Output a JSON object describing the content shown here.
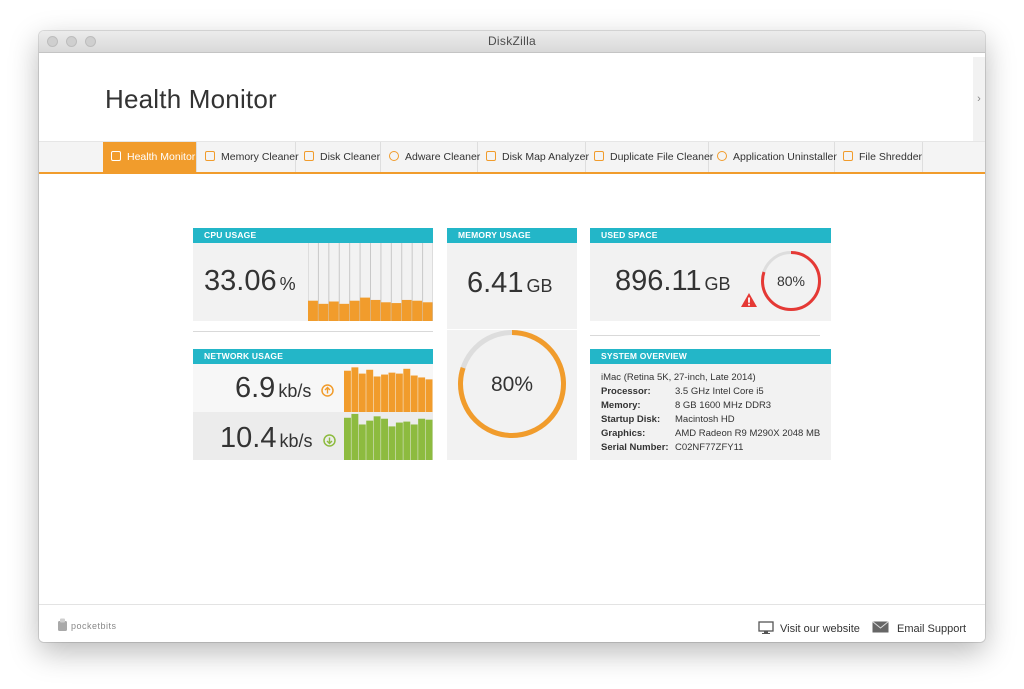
{
  "window": {
    "title": "DiskZilla"
  },
  "page": {
    "heading": "Health Monitor"
  },
  "tabs": [
    {
      "label": "Health Monitor",
      "icon": "health-monitor-icon",
      "active": true
    },
    {
      "label": "Memory Cleaner",
      "icon": "monitor-icon",
      "active": false
    },
    {
      "label": "Disk Cleaner",
      "icon": "disk-cleaner-icon",
      "active": false
    },
    {
      "label": "Adware Cleaner",
      "icon": "bug-icon",
      "active": false
    },
    {
      "label": "Disk Map Analyzer",
      "icon": "disk-map-icon",
      "active": false
    },
    {
      "label": "Duplicate File Cleaner",
      "icon": "duplicate-icon",
      "active": false
    },
    {
      "label": "Application Uninstaller",
      "icon": "gear-icon",
      "active": false
    },
    {
      "label": "File Shredder",
      "icon": "shredder-icon",
      "active": false
    }
  ],
  "colors": {
    "accent": "#f19c2c",
    "header_teal": "#23b6c8",
    "upload": "#f19c2c",
    "download": "#8dbb3f",
    "alert": "#e53935"
  },
  "cpu": {
    "title": "CPU USAGE",
    "value": "33.06",
    "unit": "%",
    "bars": [
      0.26,
      0.22,
      0.25,
      0.22,
      0.26,
      0.3,
      0.27,
      0.24,
      0.23,
      0.27,
      0.26,
      0.24
    ]
  },
  "memory": {
    "title": "MEMORY USAGE",
    "value": "6.41",
    "unit": "GB",
    "percent_label": "80%",
    "percent": 0.8
  },
  "used_space": {
    "title": "USED SPACE",
    "value": "896.11",
    "unit": "GB",
    "percent_label": "80%",
    "percent": 0.8
  },
  "network": {
    "title": "NETWORK USAGE",
    "upload": {
      "value": "6.9",
      "unit": "kb/s",
      "icon": "upload-arrow-icon",
      "bars": [
        0.86,
        0.93,
        0.8,
        0.88,
        0.74,
        0.78,
        0.82,
        0.8,
        0.9,
        0.76,
        0.72,
        0.68
      ]
    },
    "download": {
      "value": "10.4",
      "unit": "kb/s",
      "icon": "download-arrow-icon",
      "bars": [
        0.88,
        0.96,
        0.74,
        0.82,
        0.91,
        0.86,
        0.7,
        0.78,
        0.8,
        0.74,
        0.86,
        0.84
      ]
    }
  },
  "system": {
    "title": "SYSTEM OVERVIEW",
    "model": "iMac (Retina 5K, 27-inch, Late 2014)",
    "rows": [
      {
        "key": "Processor:",
        "value": "3.5 GHz Intel Core i5"
      },
      {
        "key": "Memory:",
        "value": "8 GB 1600 MHz DDR3"
      },
      {
        "key": "Startup Disk:",
        "value": "Macintosh HD"
      },
      {
        "key": "Graphics:",
        "value": "AMD Radeon R9 M290X 2048 MB"
      },
      {
        "key": "Serial Number:",
        "value": "C02NF77ZFY11"
      }
    ]
  },
  "footer": {
    "logo_text": "pocketbits",
    "visit": "Visit our website",
    "email": "Email Support"
  }
}
